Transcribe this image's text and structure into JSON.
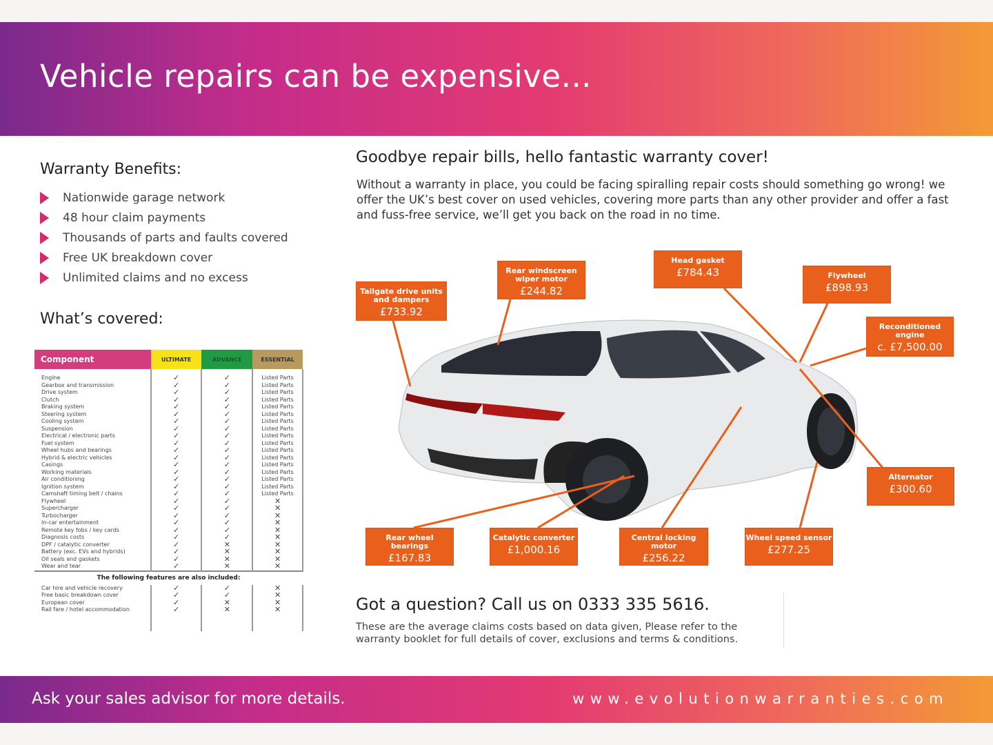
{
  "header": {
    "title": "Vehicle repairs can be expensive..."
  },
  "benefits": {
    "title": "Warranty Benefits:",
    "items": [
      "Nationwide garage network",
      "48 hour claim payments",
      "Thousands of parts and faults covered",
      "Free UK breakdown cover",
      "Unlimited claims and no excess"
    ]
  },
  "covered": {
    "title": "What’s covered:",
    "columns": [
      "Component",
      "ULTIMATE",
      "ADVANCE",
      "ESSENTIAL"
    ],
    "rows": [
      [
        "Engine",
        "✓",
        "✓",
        "Listed Parts"
      ],
      [
        "Gearbox and transmission",
        "✓",
        "✓",
        "Listed Parts"
      ],
      [
        "Drive system",
        "✓",
        "✓",
        "Listed Parts"
      ],
      [
        "Clutch",
        "✓",
        "✓",
        "Listed Parts"
      ],
      [
        "Braking system",
        "✓",
        "✓",
        "Listed Parts"
      ],
      [
        "Steering system",
        "✓",
        "✓",
        "Listed Parts"
      ],
      [
        "Cooling system",
        "✓",
        "✓",
        "Listed Parts"
      ],
      [
        "Suspension",
        "✓",
        "✓",
        "Listed Parts"
      ],
      [
        "Electrical / electronic parts",
        "✓",
        "✓",
        "Listed Parts"
      ],
      [
        "Fuel system",
        "✓",
        "✓",
        "Listed Parts"
      ],
      [
        "Wheel hubs and bearings",
        "✓",
        "✓",
        "Listed Parts"
      ],
      [
        "Hybrid & electric vehicles",
        "✓",
        "✓",
        "Listed Parts"
      ],
      [
        "Casings",
        "✓",
        "✓",
        "Listed Parts"
      ],
      [
        "Working materials",
        "✓",
        "✓",
        "Listed Parts"
      ],
      [
        "Air conditioning",
        "✓",
        "✓",
        "Listed Parts"
      ],
      [
        "Ignition system",
        "✓",
        "✓",
        "Listed Parts"
      ],
      [
        "Camshaft timing belt / chains",
        "✓",
        "✓",
        "Listed Parts"
      ],
      [
        "Flywheel",
        "✓",
        "✓",
        "✕"
      ],
      [
        "Supercharger",
        "✓",
        "✓",
        "✕"
      ],
      [
        "Turbocharger",
        "✓",
        "✓",
        "✕"
      ],
      [
        "In-car entertainment",
        "✓",
        "✓",
        "✕"
      ],
      [
        "Remote key fobs / key cards",
        "✓",
        "✓",
        "✕"
      ],
      [
        "Diagnosis costs",
        "✓",
        "✓",
        "✕"
      ],
      [
        "DPF / catalytic converter",
        "✓",
        "✕",
        "✕"
      ],
      [
        "Battery (exc. EVs and hybrids)",
        "✓",
        "✕",
        "✕"
      ],
      [
        "Oil seals and gaskets",
        "✓",
        "✕",
        "✕"
      ],
      [
        "Wear and tear",
        "✓",
        "✕",
        "✕"
      ]
    ],
    "also_title": "The following features are also included:",
    "also_rows": [
      [
        "Car hire and vehicle recovery",
        "✓",
        "✓",
        "✕"
      ],
      [
        "Free basic breakdown cover",
        "✓",
        "✓",
        "✕"
      ],
      [
        "European cover",
        "✓",
        "✕",
        "✕"
      ],
      [
        "Rail fare / hotel accommodation",
        "✓",
        "✕",
        "✕"
      ]
    ]
  },
  "right": {
    "title": "Goodbye repair bills, hello fantastic warranty cover!",
    "intro": "Without a warranty in place, you could be facing spiralling repair costs should something go wrong! we offer the UK’s best cover on used vehicles, covering more parts than any other provider and offer a fast and fuss-free service, we’ll get you back on the road in no time."
  },
  "callouts": [
    {
      "label": "Tailgate drive units and dampers",
      "price": "£733.92"
    },
    {
      "label": "Rear windscreen wiper motor",
      "price": "£244.82"
    },
    {
      "label": "Head gasket",
      "price": "£784.43"
    },
    {
      "label": "Flywheel",
      "price": "£898.93"
    },
    {
      "label": "Reconditioned engine",
      "price": "c. £7,500.00"
    },
    {
      "label": "Alternator",
      "price": "£300.60"
    },
    {
      "label": "Wheel speed sensor",
      "price": "£277.25"
    },
    {
      "label": "Central locking motor",
      "price": "£256.22"
    },
    {
      "label": "Catalytic converter",
      "price": "£1,000.16"
    },
    {
      "label": "Rear wheel bearings",
      "price": "£167.83"
    }
  ],
  "contact": {
    "question": "Got a question? Call us on 0333 335 5616.",
    "note": "These are the average claims costs based on data given, Please refer to the warranty booklet for full details of cover, exclusions and terms & conditions."
  },
  "footer": {
    "left": "Ask your sales advisor for more details.",
    "right": "www.evolutionwarranties.com"
  },
  "colors": {
    "accent_orange": "#e8601c",
    "pink": "#d33d7e",
    "ultimate": "#f7e21a",
    "advance": "#1f9c43",
    "essential": "#b79a60"
  }
}
